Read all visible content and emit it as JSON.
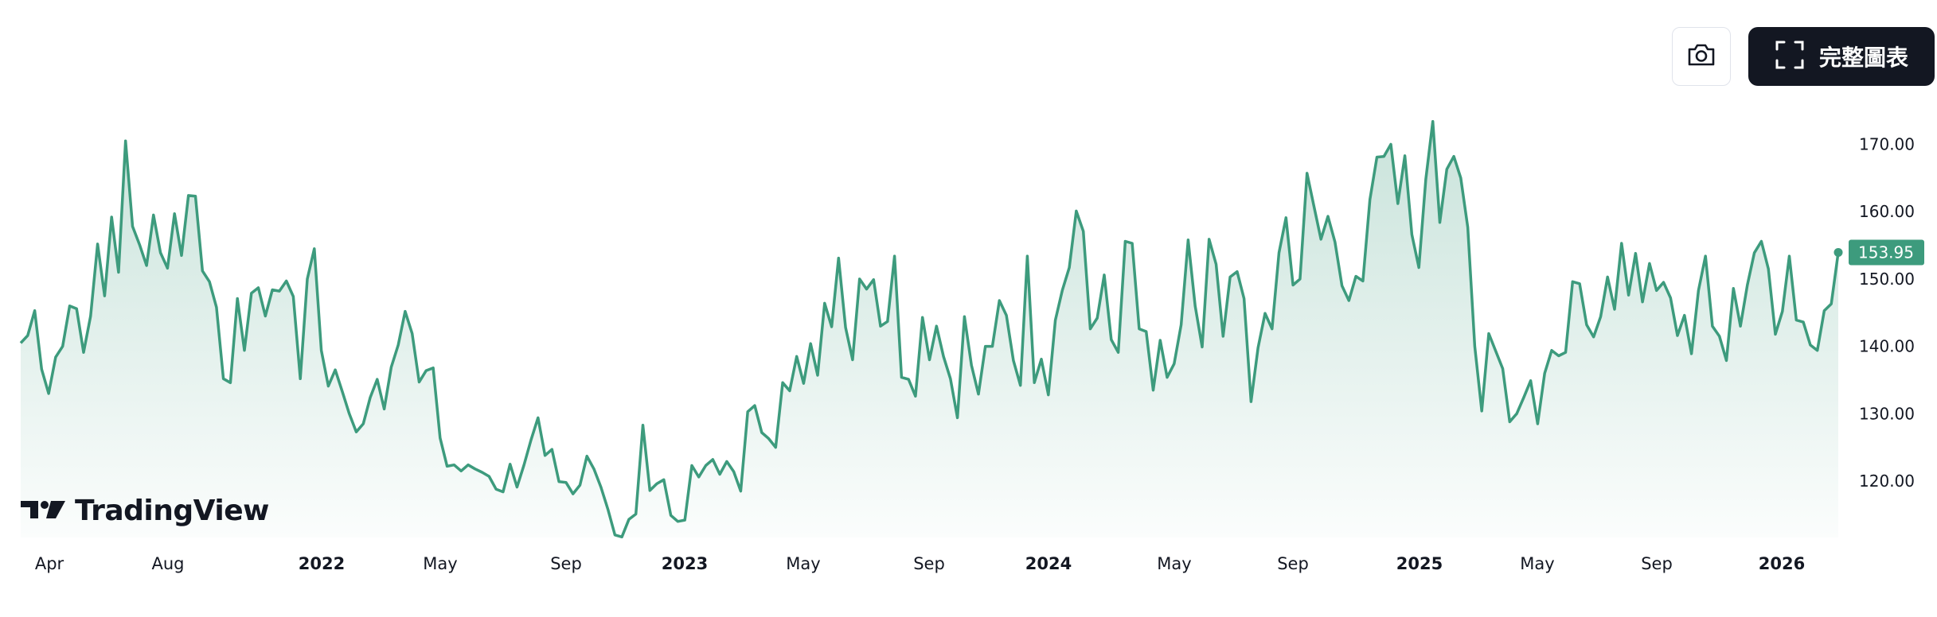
{
  "toolbar": {
    "camera_icon": "camera-icon",
    "fullscreen_icon": "fullscreen-icon",
    "full_chart_label": "完整圖表"
  },
  "branding": {
    "logo_text": "TradingView",
    "logo_icon": "tradingview-logo-icon"
  },
  "colors": {
    "line": "#3d9b7d",
    "fill": "#3d9b7d",
    "badge": "#3d9b7d",
    "button_dark": "#131722"
  },
  "chart_data": {
    "type": "area",
    "title": "",
    "xlabel": "",
    "ylabel": "",
    "ylim": [
      111,
      175
    ],
    "y_ticks": [
      "120.00",
      "130.00",
      "140.00",
      "150.00",
      "160.00",
      "170.00"
    ],
    "x_ticks": [
      {
        "label": "Apr",
        "bold": false
      },
      {
        "label": "Aug",
        "bold": false
      },
      {
        "label": "2022",
        "bold": true
      },
      {
        "label": "May",
        "bold": false
      },
      {
        "label": "Sep",
        "bold": false
      },
      {
        "label": "2023",
        "bold": true
      },
      {
        "label": "May",
        "bold": false
      },
      {
        "label": "Sep",
        "bold": false
      },
      {
        "label": "2024",
        "bold": true
      },
      {
        "label": "May",
        "bold": false
      },
      {
        "label": "Sep",
        "bold": false
      },
      {
        "label": "2025",
        "bold": true
      },
      {
        "label": "May",
        "bold": false
      },
      {
        "label": "Sep",
        "bold": false
      },
      {
        "label": "2026",
        "bold": true
      }
    ],
    "last_value": "153.95",
    "grid": false,
    "legend": "none",
    "series": [
      {
        "values": [
          140.5,
          141.6,
          145.3,
          136.6,
          133.0,
          138.4,
          140.0,
          146.0,
          145.6,
          139.1,
          144.5,
          155.2,
          147.5,
          159.2,
          151.0,
          170.5,
          157.8,
          155.1,
          152.0,
          159.5,
          153.9,
          151.6,
          159.7,
          153.5,
          162.4,
          162.3,
          151.2,
          149.6,
          145.8,
          135.2,
          134.6,
          147.1,
          139.4,
          147.9,
          148.7,
          144.5,
          148.4,
          148.2,
          149.7,
          147.4,
          135.2,
          150.0,
          154.5,
          139.4,
          134.1,
          136.5,
          133.3,
          130.0,
          127.3,
          128.5,
          132.4,
          135.1,
          130.7,
          136.9,
          140.2,
          145.2,
          141.9,
          134.7,
          136.4,
          136.8,
          126.4,
          122.2,
          122.4,
          121.5,
          122.4,
          121.8,
          121.3,
          120.7,
          118.8,
          118.4,
          122.5,
          119.1,
          122.4,
          126.1,
          129.4,
          123.8,
          124.7,
          119.9,
          119.8,
          118.1,
          119.4,
          123.7,
          121.8,
          119.1,
          115.8,
          112.0,
          111.7,
          114.3,
          115.1,
          128.3,
          118.6,
          119.6,
          120.2,
          114.9,
          114.0,
          114.2,
          122.3,
          120.6,
          122.3,
          123.2,
          121.0,
          122.9,
          121.4,
          118.5,
          130.3,
          131.2,
          127.2,
          126.3,
          125.0,
          134.6,
          133.4,
          138.5,
          134.5,
          140.4,
          135.7,
          146.4,
          142.9,
          153.1,
          142.8,
          138.0,
          150.0,
          148.5,
          149.9,
          143.0,
          143.7,
          153.4,
          135.4,
          135.1,
          132.6,
          144.3,
          138.0,
          143.0,
          138.5,
          135.2,
          129.4,
          144.4,
          137.2,
          132.9,
          140.0,
          140.0,
          146.8,
          144.6,
          137.9,
          134.2,
          153.4,
          134.6,
          138.1,
          132.8,
          143.9,
          148.3,
          151.7,
          160.1,
          157.1,
          142.6,
          144.2,
          150.6,
          141.0,
          139.1,
          155.6,
          155.3,
          142.6,
          142.2,
          133.5,
          140.9,
          135.4,
          137.4,
          143.2,
          155.8,
          146.0,
          139.9,
          155.9,
          152.2,
          141.5,
          150.3,
          151.1,
          147.1,
          131.8,
          139.8,
          144.9,
          142.6,
          153.9,
          159.1,
          149.1,
          150.0,
          165.7,
          160.8,
          155.9,
          159.3,
          155.5,
          149.0,
          146.8,
          150.4,
          149.7,
          161.8,
          168.1,
          168.2,
          170.0,
          161.2,
          168.3,
          156.6,
          151.7,
          164.8,
          173.4,
          158.4,
          166.3,
          168.2,
          165.0,
          157.7,
          140.0,
          130.4,
          141.9,
          139.3,
          136.7,
          128.8,
          130.0,
          132.4,
          134.9,
          128.5,
          136.0,
          139.4,
          138.6,
          139.1,
          149.6,
          149.3,
          143.2,
          141.4,
          144.4,
          150.3,
          145.5,
          155.3,
          147.6,
          153.8,
          146.6,
          152.3,
          148.3,
          149.5,
          147.2,
          141.6,
          144.6,
          138.9,
          148.3,
          153.4,
          143.0,
          141.5,
          137.9,
          148.6,
          143.0,
          149.1,
          153.9,
          155.6,
          151.5,
          141.8,
          145.2,
          153.4,
          143.9,
          143.6,
          140.2,
          139.4,
          145.3,
          146.3,
          153.95
        ]
      }
    ]
  }
}
